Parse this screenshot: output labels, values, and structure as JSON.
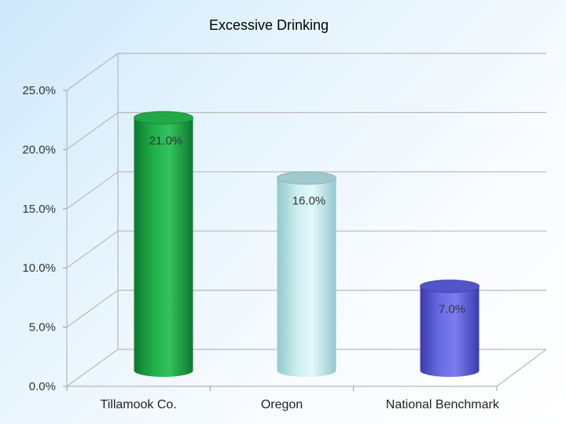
{
  "chart_data": {
    "type": "bar",
    "title": "Excessive Drinking",
    "xlabel": "",
    "ylabel": "",
    "categories": [
      "Tillamook Co.",
      "Oregon",
      "National Benchmark"
    ],
    "values": [
      21.0,
      16.0,
      7.0
    ],
    "data_labels": [
      "21.0%",
      "16.0%",
      "7.0%"
    ],
    "ylim": [
      0,
      25
    ],
    "yticks": [
      0,
      5,
      10,
      15,
      20,
      25
    ],
    "ytick_labels": [
      "0.0%",
      "5.0%",
      "10.0%",
      "15.0%",
      "20.0%",
      "25.0%"
    ],
    "grid": true,
    "bar_style": "3d-cylinder",
    "colors": [
      "#1aa243",
      "#bfe9ea",
      "#5d5fd9"
    ]
  }
}
